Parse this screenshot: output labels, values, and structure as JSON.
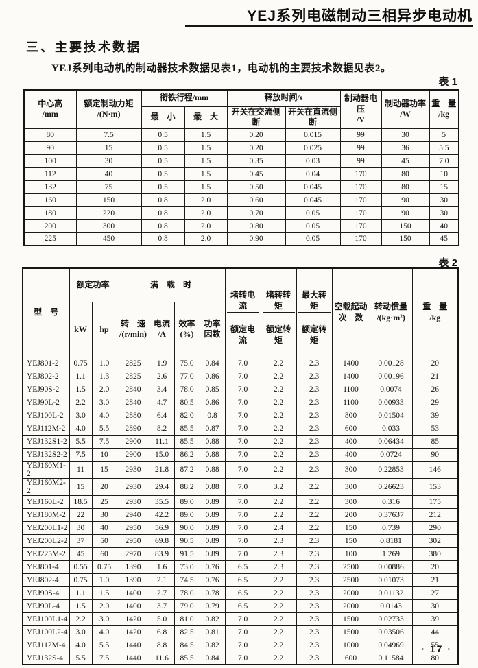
{
  "colors": {
    "paper": "#fcfbf7",
    "ink": "#141414"
  },
  "page": {
    "header_title": "YEJ系列电磁制动三相异步电动机",
    "section_heading": "三、主要技术数据",
    "intro": "YEJ系列电动机的制动器技术数据见表1，电动机的主要技术数据见表2。",
    "page_number": "· 17 ·"
  },
  "table1": {
    "label": "表 1",
    "headers": {
      "center_height": "中心高\n/mm",
      "rated_torque": "额定制动力矩\n/(N·m)",
      "armature_travel": "衔铁行程/mm",
      "travel_min": "最　小",
      "travel_max": "最　大",
      "release_time": "释放时间/s",
      "release_ac": "开关在交流侧断",
      "release_dc": "开关在直流侧断",
      "brake_voltage": "制动器电压\n/V",
      "brake_power": "制动器功率\n/W",
      "weight": "重　量\n/kg"
    },
    "rows": [
      [
        "80",
        "7.5",
        "0.5",
        "1.5",
        "0.20",
        "0.015",
        "99",
        "30",
        "5"
      ],
      [
        "90",
        "15",
        "0.5",
        "1.5",
        "0.20",
        "0.025",
        "99",
        "36",
        "5.5"
      ],
      [
        "100",
        "30",
        "0.5",
        "1.5",
        "0.35",
        "0.03",
        "99",
        "45",
        "7.0"
      ],
      [
        "112",
        "40",
        "0.5",
        "1.5",
        "0.45",
        "0.04",
        "170",
        "80",
        "10"
      ],
      [
        "132",
        "75",
        "0.5",
        "1.5",
        "0.50",
        "0.045",
        "170",
        "80",
        "15"
      ],
      [
        "160",
        "150",
        "0.8",
        "2.0",
        "0.60",
        "0.045",
        "170",
        "90",
        "30"
      ],
      [
        "180",
        "220",
        "0.8",
        "2.0",
        "0.70",
        "0.05",
        "170",
        "90",
        "30"
      ],
      [
        "200",
        "300",
        "0.8",
        "2.0",
        "0.80",
        "0.05",
        "170",
        "150",
        "40"
      ],
      [
        "225",
        "450",
        "0.8",
        "2.0",
        "0.90",
        "0.05",
        "170",
        "150",
        "45"
      ]
    ]
  },
  "table2": {
    "label": "表 2",
    "headers": {
      "model": "型　号",
      "rated_power": "额定功率",
      "kw": "kW",
      "hp": "hp",
      "full_load": "满　载　时",
      "speed": "转　速\n/(r/min)",
      "current": "电流\n/A",
      "efficiency": "效率\n(%)",
      "power_factor": "功率\n因数",
      "lr_current": {
        "num": "堵转电流",
        "den": "额定电流"
      },
      "lr_torque": {
        "num": "堵转转矩",
        "den": "额定转矩"
      },
      "max_torque": {
        "num": "最大转矩",
        "den": "额定转矩"
      },
      "no_load_starts": "空载起动\n次　数",
      "inertia": "转动惯量\n/(kg·m²)",
      "weight": "重　量\n/kg"
    },
    "rows": [
      [
        "YEJ801-2",
        "0.75",
        "1.0",
        "2825",
        "1.9",
        "75.0",
        "0.84",
        "7.0",
        "2.2",
        "2.3",
        "1400",
        "0.00128",
        "20"
      ],
      [
        "YEJ802-2",
        "1.1",
        "1.3",
        "2825",
        "2.6",
        "77.0",
        "0.86",
        "7.0",
        "2.2",
        "2.3",
        "1400",
        "0.00196",
        "21"
      ],
      [
        "YEJ90S-2",
        "1.5",
        "2.0",
        "2840",
        "3.4",
        "78.0",
        "0.85",
        "7.0",
        "2.2",
        "2.3",
        "1100",
        "0.0074",
        "26"
      ],
      [
        "YEJ90L-2",
        "2.2",
        "3.0",
        "2840",
        "4.7",
        "80.5",
        "0.86",
        "7.0",
        "2.2",
        "2.3",
        "1100",
        "0.00933",
        "29"
      ],
      [
        "YEJ100L-2",
        "3.0",
        "4.0",
        "2880",
        "6.4",
        "82.0",
        "0.8",
        "7.0",
        "2.2",
        "2.3",
        "800",
        "0.01504",
        "39"
      ],
      [
        "YEJ112M-2",
        "4.0",
        "5.5",
        "2890",
        "8.2",
        "85.5",
        "0.87",
        "7.0",
        "2.2",
        "2.3",
        "600",
        "0.033",
        "53"
      ],
      [
        "YEJ132S1-2",
        "5.5",
        "7.5",
        "2900",
        "11.1",
        "85.5",
        "0.88",
        "7.0",
        "2.2",
        "2.3",
        "400",
        "0.06434",
        "85"
      ],
      [
        "YEJ132S2-2",
        "7.5",
        "10",
        "2900",
        "15.0",
        "86.2",
        "0.88",
        "7.0",
        "2.2",
        "2.3",
        "400",
        "0.0724",
        "90"
      ],
      [
        "YEJ160M1-2",
        "11",
        "15",
        "2930",
        "21.8",
        "87.2",
        "0.88",
        "7.0",
        "2.2",
        "2.3",
        "300",
        "0.22853",
        "146"
      ],
      [
        "YEJ160M2-2",
        "15",
        "20",
        "2930",
        "29.4",
        "88.2",
        "0.88",
        "7.0",
        "3.2",
        "2.2",
        "300",
        "0.26623",
        "153"
      ],
      [
        "YEJ160L-2",
        "18.5",
        "25",
        "2930",
        "35.5",
        "89.0",
        "0.89",
        "7.0",
        "2.2",
        "2.2",
        "300",
        "0.316",
        "175"
      ],
      [
        "YEJ180M-2",
        "22",
        "30",
        "2940",
        "42.2",
        "89.0",
        "0.89",
        "7.0",
        "2.2",
        "2.2",
        "200",
        "0.37637",
        "212"
      ],
      [
        "YEJ200L1-2",
        "30",
        "40",
        "2950",
        "56.9",
        "90.0",
        "0.89",
        "7.0",
        "2.4",
        "2.2",
        "150",
        "0.739",
        "290"
      ],
      [
        "YEJ200L2-2",
        "37",
        "50",
        "2950",
        "69.8",
        "90.5",
        "0.89",
        "7.0",
        "2.3",
        "2.3",
        "150",
        "0.8181",
        "302"
      ],
      [
        "YEJ225M-2",
        "45",
        "60",
        "2970",
        "83.9",
        "91.5",
        "0.89",
        "7.0",
        "2.3",
        "2.3",
        "100",
        "1.269",
        "380"
      ],
      [
        "YEJ801-4",
        "0.55",
        "0.75",
        "1390",
        "1.6",
        "73.0",
        "0.76",
        "6.5",
        "2.3",
        "2.3",
        "2500",
        "0.00886",
        "20"
      ],
      [
        "YEJ802-4",
        "0.75",
        "1.0",
        "1390",
        "2.1",
        "74.5",
        "0.76",
        "6.5",
        "2.2",
        "2.3",
        "2500",
        "0.01073",
        "21"
      ],
      [
        "YEJ90S-4",
        "1.1",
        "1.5",
        "1400",
        "2.7",
        "78.0",
        "0.78",
        "6.5",
        "2.2",
        "2.3",
        "2000",
        "0.01132",
        "27"
      ],
      [
        "YEJ90L-4",
        "1.5",
        "2.0",
        "1400",
        "3.7",
        "79.0",
        "0.79",
        "6.5",
        "2.2",
        "2.3",
        "2000",
        "0.0143",
        "30"
      ],
      [
        "YEJ100L1-4",
        "2.2",
        "3.0",
        "1420",
        "5.0",
        "81.0",
        "0.82",
        "7.0",
        "2.2",
        "2.3",
        "1500",
        "0.02733",
        "39"
      ],
      [
        "YEJ100L2-4",
        "3.0",
        "4.0",
        "1420",
        "6.8",
        "82.5",
        "0.81",
        "7.0",
        "2.2",
        "2.3",
        "1500",
        "0.03506",
        "44"
      ],
      [
        "YEJ112M-4",
        "4.0",
        "5.5",
        "1440",
        "8.8",
        "84.5",
        "0.82",
        "7.0",
        "2.2",
        "2.3",
        "1000",
        "0.04969",
        "55"
      ],
      [
        "YEJ132S-4",
        "5.5",
        "7.5",
        "1440",
        "11.6",
        "85.5",
        "0.84",
        "7.0",
        "2.2",
        "2.3",
        "600",
        "0.11584",
        "80"
      ]
    ]
  }
}
